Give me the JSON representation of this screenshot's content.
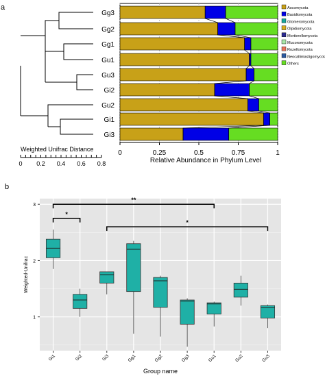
{
  "panels": {
    "a": "a",
    "b": "b"
  },
  "chart_data": [
    {
      "type": "bar",
      "panel": "a",
      "orientation": "horizontal",
      "stacked": true,
      "categories": [
        "Gg3",
        "Gg2",
        "Gg1",
        "Gu1",
        "Gu3",
        "Gi2",
        "Gu2",
        "Gi1",
        "Gi3"
      ],
      "xlabel": "Relative Abundance in Phylum Level",
      "xlim": [
        0,
        1
      ],
      "xticks": [
        "0",
        "0.25",
        "0.5",
        "0.75",
        "1"
      ],
      "legend_position": "right",
      "series": [
        {
          "name": "Ascomycota",
          "color": "#c8a118",
          "values": [
            0.54,
            0.62,
            0.79,
            0.82,
            0.8,
            0.6,
            0.81,
            0.91,
            0.4
          ]
        },
        {
          "name": "Basidiomycota",
          "color": "#0000e6",
          "values": [
            0.13,
            0.11,
            0.04,
            0.01,
            0.05,
            0.22,
            0.07,
            0.04,
            0.29
          ]
        },
        {
          "name": "Glomeromycota",
          "color": "#1aa69a",
          "values": [
            0.0,
            0.0,
            0.0,
            0.0,
            0.0,
            0.0,
            0.0,
            0.0,
            0.0
          ]
        },
        {
          "name": "Olpidiomycota",
          "color": "#d6ad1e",
          "values": [
            0.0,
            0.0,
            0.0,
            0.0,
            0.0,
            0.0,
            0.0,
            0.0,
            0.0
          ]
        },
        {
          "name": "Mortierellomycota",
          "color": "#2a2a90",
          "values": [
            0.0,
            0.0,
            0.0,
            0.0,
            0.0,
            0.0,
            0.0,
            0.0,
            0.0
          ]
        },
        {
          "name": "Mucoromycota",
          "color": "#a8e6a8",
          "values": [
            0.0,
            0.0,
            0.0,
            0.0,
            0.0,
            0.0,
            0.0,
            0.0,
            0.0
          ]
        },
        {
          "name": "Rozellomycota",
          "color": "#e8735a",
          "values": [
            0.0,
            0.0,
            0.0,
            0.0,
            0.0,
            0.0,
            0.0,
            0.0,
            0.0
          ]
        },
        {
          "name": "Neocallimastigomycota",
          "color": "#2c5aa0",
          "values": [
            0.0,
            0.0,
            0.0,
            0.0,
            0.0,
            0.0,
            0.0,
            0.0,
            0.0
          ]
        },
        {
          "name": "Others",
          "color": "#66dd22",
          "values": [
            0.33,
            0.27,
            0.17,
            0.17,
            0.15,
            0.18,
            0.12,
            0.05,
            0.31
          ]
        }
      ],
      "dendrogram": {
        "scale_label": "Weighted Unifrac Distance",
        "scale_ticks": [
          "0",
          "0.2",
          "0.4",
          "0.6",
          "0.8"
        ]
      }
    },
    {
      "type": "box",
      "panel": "b",
      "categories": [
        "Gi1",
        "Gi2",
        "Gi3",
        "Gg1",
        "Gg2",
        "Gg3",
        "Gu1",
        "Gu2",
        "Gu3"
      ],
      "xlabel": "Group name",
      "ylabel": "Weighted-Unifrac",
      "ylim": [
        0.4,
        3.1
      ],
      "yticks": [
        "1",
        "2",
        "3"
      ],
      "box_color": "#1fb0a6",
      "boxes": [
        {
          "min": 1.85,
          "q1": 2.05,
          "median": 2.22,
          "q3": 2.38,
          "max": 2.55
        },
        {
          "min": 1.0,
          "q1": 1.15,
          "median": 1.3,
          "q3": 1.4,
          "max": 1.5
        },
        {
          "min": 1.4,
          "q1": 1.6,
          "median": 1.75,
          "q3": 1.8,
          "max": 1.8
        },
        {
          "min": 0.7,
          "q1": 1.45,
          "median": 2.2,
          "q3": 2.3,
          "max": 2.35
        },
        {
          "min": 0.65,
          "q1": 1.17,
          "median": 1.64,
          "q3": 1.7,
          "max": 1.73
        },
        {
          "min": 0.47,
          "q1": 0.87,
          "median": 1.28,
          "q3": 1.3,
          "max": 1.33
        },
        {
          "min": 0.83,
          "q1": 1.05,
          "median": 1.23,
          "q3": 1.25,
          "max": 1.27
        },
        {
          "min": 1.2,
          "q1": 1.35,
          "median": 1.49,
          "q3": 1.6,
          "max": 1.73
        },
        {
          "min": 0.8,
          "q1": 0.98,
          "median": 1.17,
          "q3": 1.2,
          "max": 1.22
        }
      ],
      "significance": [
        {
          "from": "Gi1",
          "to": "Gi2",
          "label": "*"
        },
        {
          "from": "Gi1",
          "to": "Gu1",
          "label": "**"
        },
        {
          "from": "Gi3",
          "to": "Gu3",
          "label": "*"
        }
      ]
    }
  ]
}
